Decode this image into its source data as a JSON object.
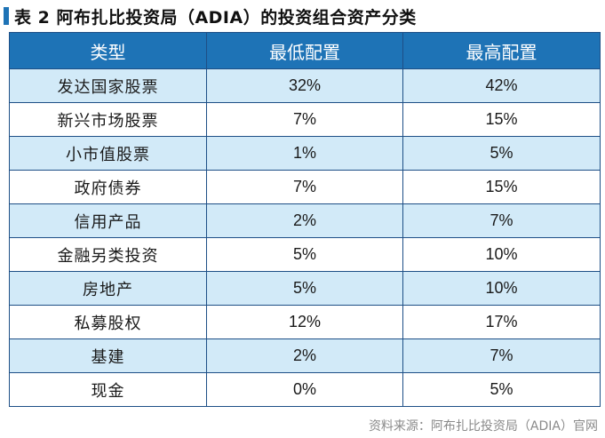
{
  "title": "表 2    阿布扎比投资局（ADIA）的投资组合资产分类",
  "table": {
    "headers": [
      "类型",
      "最低配置",
      "最高配置"
    ],
    "rows": [
      [
        "发达国家股票",
        "32%",
        "42%"
      ],
      [
        "新兴市场股票",
        "7%",
        "15%"
      ],
      [
        "小市值股票",
        "1%",
        "5%"
      ],
      [
        "政府债券",
        "7%",
        "15%"
      ],
      [
        "信用产品",
        "2%",
        "7%"
      ],
      [
        "金融另类投资",
        "5%",
        "10%"
      ],
      [
        "房地产",
        "5%",
        "10%"
      ],
      [
        "私募股权",
        "12%",
        "17%"
      ],
      [
        "基建",
        "2%",
        "7%"
      ],
      [
        "现金",
        "0%",
        "5%"
      ]
    ]
  },
  "source": "资料来源：阿布扎比投资局（ADIA）官网",
  "colors": {
    "header_bg": "#1e73b6",
    "stripe_bg": "#d2eaf8"
  }
}
